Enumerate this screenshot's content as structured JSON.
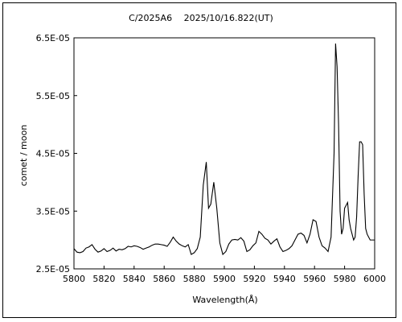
{
  "chart_data": {
    "type": "line",
    "title": "C/2025A6　 2025/10/16.822(UT)",
    "xlabel": "Wavelength(Å)",
    "ylabel": "comet / moon",
    "xlim": [
      5800,
      6000
    ],
    "ylim": [
      2.5e-05,
      6.5e-05
    ],
    "x_ticks": [
      5800,
      5820,
      5840,
      5860,
      5880,
      5900,
      5920,
      5940,
      5960,
      5980,
      6000
    ],
    "x_tick_labels": [
      "5800",
      "5820",
      "5840",
      "5860",
      "5880",
      "5900",
      "5920",
      "5940",
      "5960",
      "5980",
      "6000"
    ],
    "y_ticks": [
      2.5e-05,
      3.5e-05,
      4.5e-05,
      5.5e-05,
      6.5e-05
    ],
    "y_tick_labels": [
      "2.5E-05",
      "3.5E-05",
      "4.5E-05",
      "5.5E-05",
      "6.5E-05"
    ],
    "grid": false,
    "line_color": "#000000",
    "series": [
      {
        "x": [
          5800,
          5802,
          5804,
          5806,
          5808,
          5810,
          5812,
          5814,
          5816,
          5818,
          5820,
          5822,
          5824,
          5826,
          5828,
          5830,
          5832,
          5834,
          5836,
          5838,
          5840,
          5842,
          5844,
          5846,
          5848,
          5850,
          5852,
          5854,
          5856,
          5858,
          5860,
          5862,
          5864,
          5866,
          5868,
          5870,
          5872,
          5874,
          5876,
          5878,
          5880,
          5882,
          5884,
          5886,
          5888,
          5889.5,
          5891,
          5893,
          5895,
          5897,
          5899,
          5901,
          5903,
          5905,
          5907,
          5909,
          5911,
          5913,
          5915,
          5917,
          5919,
          5921,
          5923,
          5925,
          5927,
          5929,
          5931,
          5933,
          5935,
          5937,
          5939,
          5941,
          5943,
          5945,
          5947,
          5949,
          5951,
          5953,
          5955,
          5957,
          5959,
          5961,
          5963,
          5965,
          5967,
          5969,
          5971,
          5973,
          5974,
          5975,
          5976,
          5977,
          5978,
          5979,
          5980,
          5981,
          5982,
          5983,
          5984,
          5985,
          5986,
          5987,
          5988,
          5989,
          5990,
          5991,
          5992,
          5993,
          5994,
          5995,
          5996,
          5997,
          5998,
          5999,
          6000
        ],
        "y": [
          2.85e-05,
          2.79e-05,
          2.78e-05,
          2.8e-05,
          2.86e-05,
          2.88e-05,
          2.92e-05,
          2.84e-05,
          2.79e-05,
          2.81e-05,
          2.85e-05,
          2.8e-05,
          2.82e-05,
          2.86e-05,
          2.81e-05,
          2.84e-05,
          2.83e-05,
          2.85e-05,
          2.89e-05,
          2.88e-05,
          2.9e-05,
          2.89e-05,
          2.87e-05,
          2.84e-05,
          2.86e-05,
          2.88e-05,
          2.91e-05,
          2.93e-05,
          2.93e-05,
          2.92e-05,
          2.91e-05,
          2.89e-05,
          2.96e-05,
          3.05e-05,
          2.98e-05,
          2.93e-05,
          2.9e-05,
          2.88e-05,
          2.92e-05,
          2.75e-05,
          2.78e-05,
          2.85e-05,
          3.05e-05,
          3.95e-05,
          4.35e-05,
          3.55e-05,
          3.62e-05,
          4e-05,
          3.55e-05,
          2.95e-05,
          2.75e-05,
          2.8e-05,
          2.93e-05,
          3e-05,
          3.01e-05,
          3e-05,
          3.04e-05,
          2.98e-05,
          2.8e-05,
          2.83e-05,
          2.9e-05,
          2.95e-05,
          3.15e-05,
          3.1e-05,
          3.03e-05,
          3e-05,
          2.93e-05,
          2.98e-05,
          3.02e-05,
          2.88e-05,
          2.8e-05,
          2.82e-05,
          2.85e-05,
          2.9e-05,
          3e-05,
          3.1e-05,
          3.12e-05,
          3.08e-05,
          2.95e-05,
          3.1e-05,
          3.35e-05,
          3.32e-05,
          3.05e-05,
          2.9e-05,
          2.86e-05,
          2.8e-05,
          3.05e-05,
          4.5e-05,
          6.4e-05,
          6e-05,
          5e-05,
          3.5e-05,
          3.1e-05,
          3.2e-05,
          3.55e-05,
          3.6e-05,
          3.65e-05,
          3.35e-05,
          3.2e-05,
          3.1e-05,
          3e-05,
          3.05e-05,
          3.4e-05,
          4.1e-05,
          4.7e-05,
          4.7e-05,
          4.65e-05,
          3.8e-05,
          3.2e-05,
          3.1e-05,
          3.05e-05,
          3e-05,
          3e-05,
          3e-05,
          3e-05
        ]
      }
    ]
  }
}
